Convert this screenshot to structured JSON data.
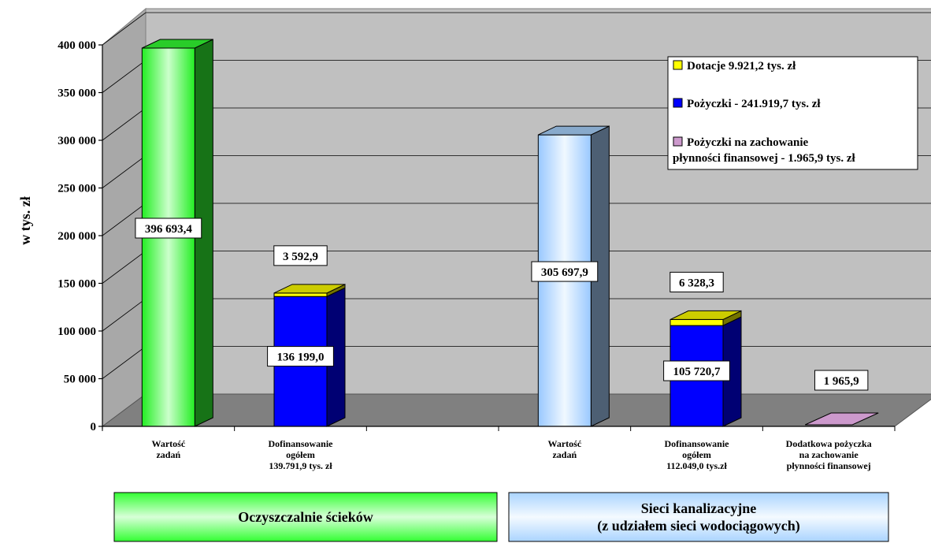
{
  "chart_data": {
    "type": "bar",
    "ylabel": "w tys. zł",
    "ylim": [
      0,
      400000
    ],
    "yticks": [
      "0",
      "50 000",
      "100 000",
      "150 000",
      "200 000",
      "250 000",
      "300 000",
      "350 000",
      "400 000"
    ],
    "grid": true,
    "categories": [
      {
        "lines": [
          "Wartość",
          "zadań"
        ]
      },
      {
        "lines": [
          "Dofinansowanie",
          "ogółem",
          "139.791,9 tys. zł"
        ]
      },
      {
        "lines": [
          "Wartość",
          "zadań"
        ]
      },
      {
        "lines": [
          "Dofinansowanie",
          "ogółem",
          "112.049,0 tys.zł"
        ]
      },
      {
        "lines": [
          "Dodatkowa pożyczka",
          "na zachowanie",
          "płynności finansowej"
        ]
      }
    ],
    "bars": [
      {
        "value": 396693.4,
        "label": "396 693,4",
        "kind": "wartosc-oczyszczalnie"
      },
      {
        "value": 136199.0,
        "label": "136 199,0",
        "kind": "pozyczki",
        "top_value": 3592.9,
        "top_label": "3 592,9"
      },
      {
        "value": 305697.9,
        "label": "305 697,9",
        "kind": "wartosc-sieci"
      },
      {
        "value": 105720.7,
        "label": "105 720,7",
        "kind": "pozyczki",
        "top_value": 6328.3,
        "top_label": "6 328,3"
      },
      {
        "value": 1965.9,
        "label": "1 965,9",
        "kind": "plynnosc"
      }
    ],
    "legend": {
      "position": "top-right",
      "items": [
        {
          "kind": "dotacje",
          "lines": [
            "Dotacje 9.921,2 tys. zł"
          ]
        },
        {
          "kind": "pozyczki",
          "lines": [
            "Pożyczki - 241.919,7 tys. zł"
          ]
        },
        {
          "kind": "plynnosc",
          "lines": [
            "Pożyczki na zachowanie",
            "płynności finansowej  - 1.965,9 tys. zł"
          ]
        }
      ]
    },
    "groups": [
      {
        "kind": "oczyszczalnie",
        "lines": [
          "Oczyszczalnie ścieków"
        ]
      },
      {
        "kind": "sieci",
        "lines": [
          "Sieci kanalizacyjne",
          "(z udziałem sieci wodociągowych)"
        ]
      }
    ],
    "colors": {
      "dotacje": "#ffff00",
      "pozyczki": "#0000ff",
      "plynnosc": "#cc99cc",
      "wartosc-oczyszczalnie": "#33ff33",
      "wartosc-sieci": "#aad4ff",
      "oczyszczalnie": "#33ff33",
      "sieci": "#aad4ff"
    }
  }
}
